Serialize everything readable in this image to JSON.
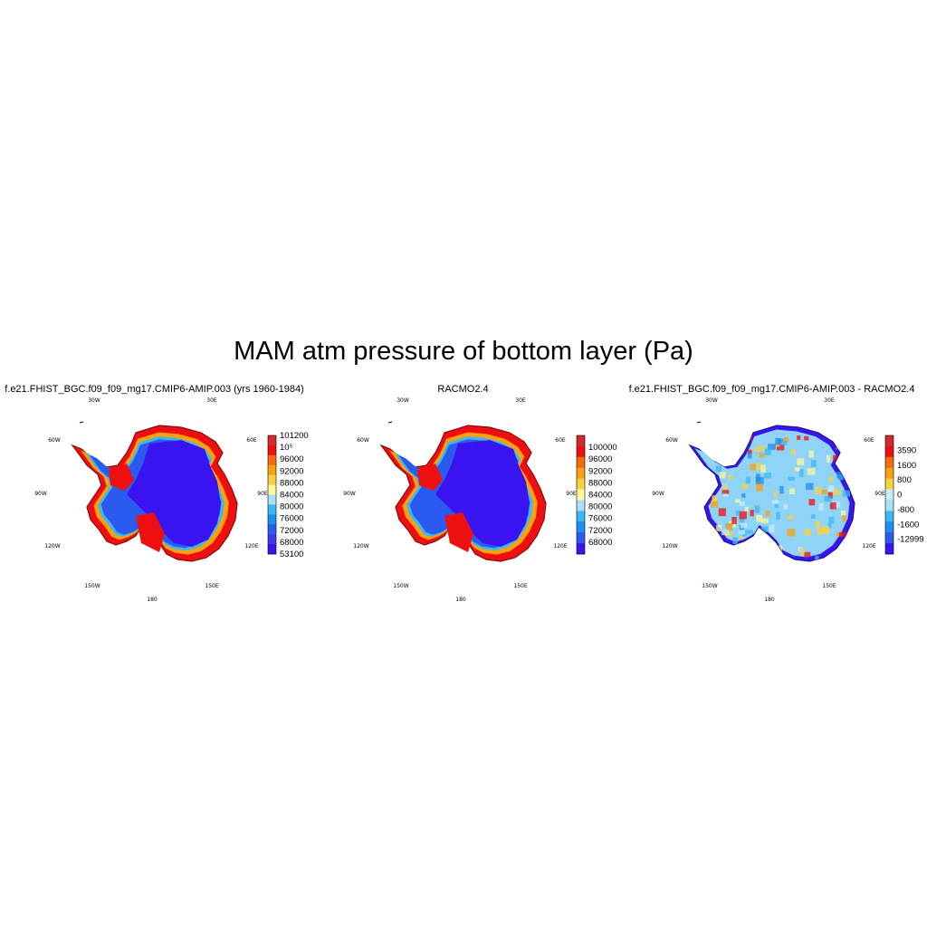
{
  "title": "MAM atm pressure of bottom layer (Pa)",
  "lon_labels": [
    "30W",
    "30E",
    "60W",
    "60E",
    "90W",
    "90E",
    "120W",
    "120E",
    "150W",
    "150E",
    "180"
  ],
  "panels": [
    {
      "name": "model",
      "title": "f.e21.FHIST_BGC.f09_f09_mg17.CMIP6-AMIP.003 (yrs 1960-1984)",
      "colorbar": {
        "labels": [
          "101200",
          "10⁵",
          "96000",
          "92000",
          "88000",
          "84000",
          "80000",
          "76000",
          "72000",
          "68000",
          "53100"
        ],
        "colors": [
          "#d42a2a",
          "#ee1010",
          "#f56a0a",
          "#f8a010",
          "#fbd040",
          "#fff79a",
          "#a8e0f8",
          "#3cb8f0",
          "#1e8ff0",
          "#2a5af0",
          "#3a3ae8",
          "#3a14f0"
        ]
      }
    },
    {
      "name": "racmo",
      "title": "RACMO2.4",
      "colorbar": {
        "labels": [
          "100000",
          "96000",
          "92000",
          "88000",
          "84000",
          "80000",
          "76000",
          "72000",
          "68000"
        ],
        "colors": [
          "#d42a2a",
          "#ee1010",
          "#f56a0a",
          "#f8a010",
          "#fbd040",
          "#fff79a",
          "#a8e0f8",
          "#3cb8f0",
          "#1e8ff0",
          "#2a5af0",
          "#3a14f0"
        ]
      }
    },
    {
      "name": "difference",
      "title": "f.e21.FHIST_BGC.f09_f09_mg17.CMIP6-AMIP.003 - RACMO2.4",
      "colorbar": {
        "labels": [
          "3590",
          "1600",
          "800",
          "0",
          "-800",
          "-1600",
          "-12999"
        ],
        "colors": [
          "#d42a2a",
          "#ee1010",
          "#f56a0a",
          "#f8a010",
          "#fbd040",
          "#c8ecfa",
          "#a8e0f8",
          "#3cb8f0",
          "#1e8ff0",
          "#2a5af0",
          "#3a14f0"
        ]
      }
    }
  ]
}
